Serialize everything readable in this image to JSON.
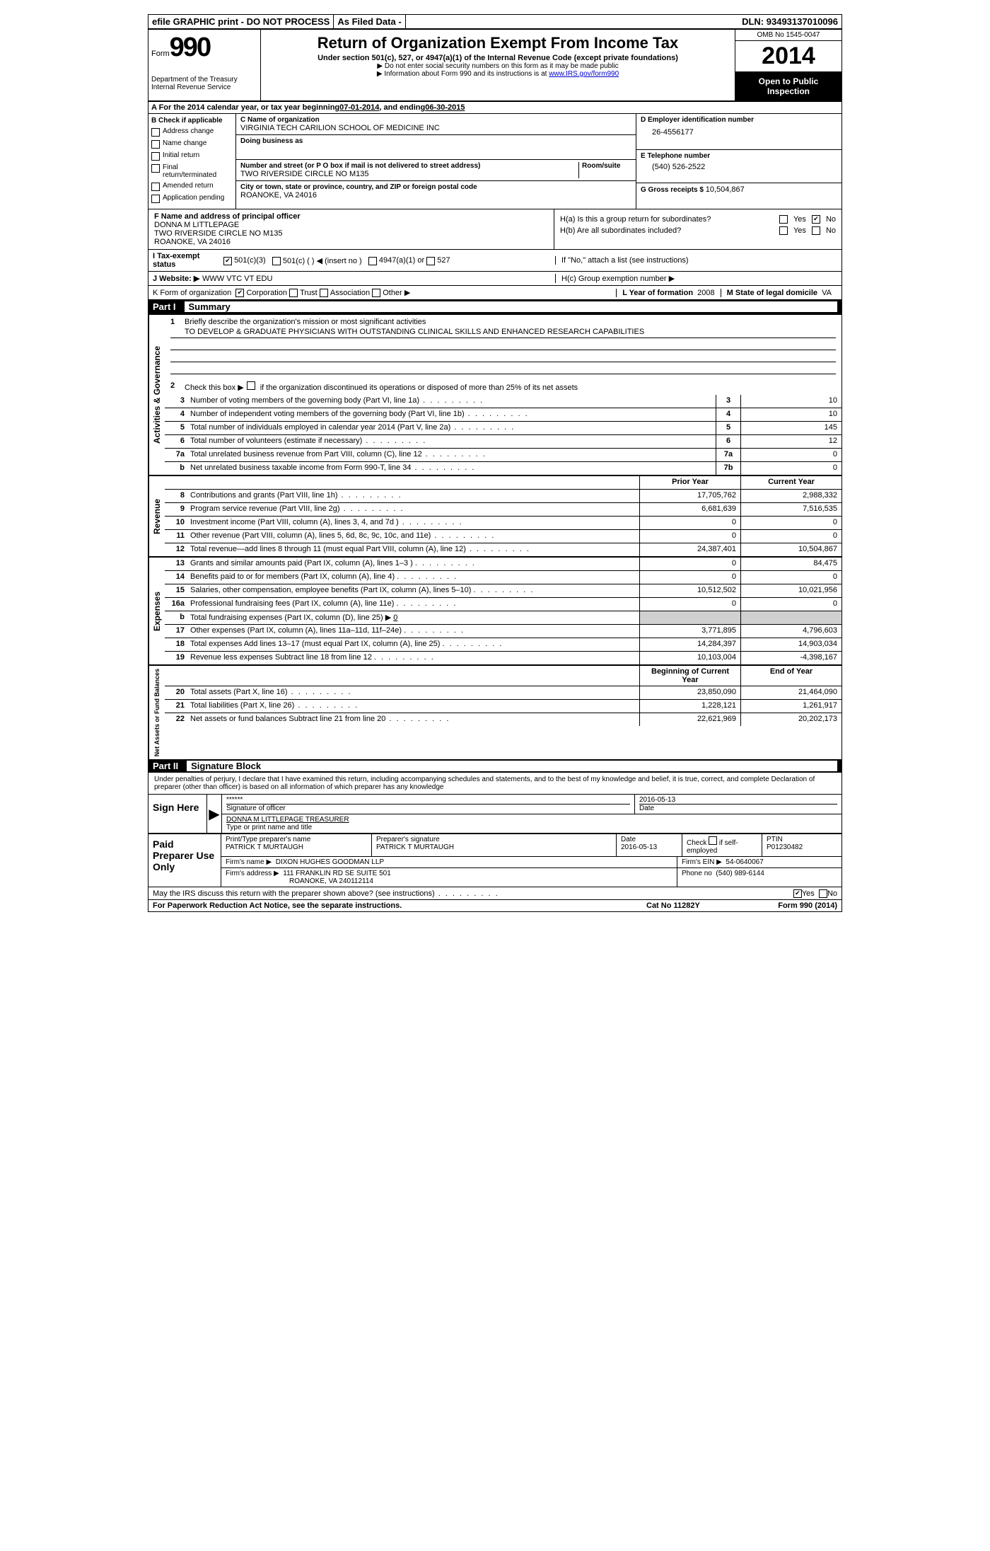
{
  "top_bar": {
    "efile": "efile GRAPHIC print - DO NOT PROCESS",
    "as_filed": "As Filed Data -",
    "dln_label": "DLN:",
    "dln": "93493137010096"
  },
  "header": {
    "form_label": "Form",
    "form_number": "990",
    "dept": "Department of the Treasury",
    "irs": "Internal Revenue Service",
    "title": "Return of Organization Exempt From Income Tax",
    "subtitle": "Under section 501(c), 527, or 4947(a)(1) of the Internal Revenue Code (except private foundations)",
    "note1": "▶ Do not enter social security numbers on this form as it may be made public",
    "note2_pre": "▶ Information about Form 990 and its instructions is at ",
    "note2_link": "www.IRS.gov/form990",
    "omb": "OMB No 1545-0047",
    "year": "2014",
    "inspection": "Open to Public Inspection"
  },
  "row_a": {
    "prefix": "A  For the 2014 calendar year, or tax year beginning ",
    "begin": "07-01-2014",
    "mid": " , and ending ",
    "end": "06-30-2015"
  },
  "section_b": {
    "label": "B  Check if applicable",
    "items": [
      "Address change",
      "Name change",
      "Initial return",
      "Final return/terminated",
      "Amended return",
      "Application pending"
    ]
  },
  "section_c": {
    "name_label": "C Name of organization",
    "name": "VIRGINIA TECH CARILION SCHOOL OF MEDICINE INC",
    "dba_label": "Doing business as",
    "dba": "",
    "addr_label": "Number and street (or P O  box if mail is not delivered to street address)",
    "room_label": "Room/suite",
    "addr": "TWO RIVERSIDE CIRCLE NO M135",
    "city_label": "City or town, state or province, country, and ZIP or foreign postal code",
    "city": "ROANOKE, VA  24016"
  },
  "section_d": {
    "ein_label": "D Employer identification number",
    "ein": "26-4556177",
    "tel_label": "E Telephone number",
    "tel": "(540) 526-2522",
    "gross_label": "G Gross receipts $",
    "gross": "10,504,867"
  },
  "section_f": {
    "label": "F  Name and address of principal officer",
    "name": "DONNA M LITTLEPAGE",
    "addr1": "TWO RIVERSIDE CIRCLE NO M135",
    "addr2": "ROANOKE, VA   24016"
  },
  "section_h": {
    "ha": "H(a)  Is this a group return for subordinates?",
    "hb": "H(b)  Are all subordinates included?",
    "hb_note": "If \"No,\" attach a list  (see instructions)",
    "hc": "H(c)  Group exemption number ▶",
    "yes": "Yes",
    "no": "No",
    "ha_yes": false,
    "ha_no": true
  },
  "line_i": {
    "label": "I   Tax-exempt status",
    "opt1": "501(c)(3)",
    "opt2": "501(c) (   ) ◀ (insert no )",
    "opt3": "4947(a)(1) or",
    "opt4": "527"
  },
  "line_j": {
    "label": "J   Website: ▶",
    "value": "WWW VTC VT EDU"
  },
  "line_k": {
    "label": "K Form of organization",
    "opts": [
      "Corporation",
      "Trust",
      "Association",
      "Other ▶"
    ],
    "l_label": "L Year of formation",
    "l_val": "2008",
    "m_label": "M State of legal domicile",
    "m_val": "VA"
  },
  "part1": {
    "num": "Part I",
    "title": "Summary",
    "q1_label": "1",
    "q1_text": "Briefly describe the organization's mission or most significant activities",
    "q1_mission": "TO DEVELOP & GRADUATE PHYSICIANS WITH OUTSTANDING CLINICAL SKILLS AND ENHANCED RESEARCH CAPABILITIES",
    "q2_label": "2",
    "q2_text": "Check this box ▶     if the organization discontinued its operations or disposed of more than 25% of its net assets",
    "lines_single": [
      {
        "n": "3",
        "desc": "Number of voting members of the governing body (Part VI, line 1a)",
        "box": "3",
        "val": "10"
      },
      {
        "n": "4",
        "desc": "Number of independent voting members of the governing body (Part VI, line 1b)",
        "box": "4",
        "val": "10"
      },
      {
        "n": "5",
        "desc": "Total number of individuals employed in calendar year 2014 (Part V, line 2a)",
        "box": "5",
        "val": "145"
      },
      {
        "n": "6",
        "desc": "Total number of volunteers (estimate if necessary)",
        "box": "6",
        "val": "12"
      },
      {
        "n": "7a",
        "desc": "Total unrelated business revenue from Part VIII, column (C), line 12",
        "box": "7a",
        "val": "0"
      },
      {
        "n": "b",
        "desc": "Net unrelated business taxable income from Form 990-T, line 34",
        "box": "7b",
        "val": "0"
      }
    ],
    "col_headers": {
      "prior": "Prior Year",
      "current": "Current Year"
    },
    "revenue": [
      {
        "n": "8",
        "desc": "Contributions and grants (Part VIII, line 1h)",
        "prior": "17,705,762",
        "current": "2,988,332"
      },
      {
        "n": "9",
        "desc": "Program service revenue (Part VIII, line 2g)",
        "prior": "6,681,639",
        "current": "7,516,535"
      },
      {
        "n": "10",
        "desc": "Investment income (Part VIII, column (A), lines 3, 4, and 7d )",
        "prior": "0",
        "current": "0"
      },
      {
        "n": "11",
        "desc": "Other revenue (Part VIII, column (A), lines 5, 6d, 8c, 9c, 10c, and 11e)",
        "prior": "0",
        "current": "0"
      },
      {
        "n": "12",
        "desc": "Total revenue—add lines 8 through 11 (must equal Part VIII, column (A), line 12)",
        "prior": "24,387,401",
        "current": "10,504,867"
      }
    ],
    "expenses": [
      {
        "n": "13",
        "desc": "Grants and similar amounts paid (Part IX, column (A), lines 1–3 )",
        "prior": "0",
        "current": "84,475"
      },
      {
        "n": "14",
        "desc": "Benefits paid to or for members (Part IX, column (A), line 4)",
        "prior": "0",
        "current": "0"
      },
      {
        "n": "15",
        "desc": "Salaries, other compensation, employee benefits (Part IX, column (A), lines 5–10)",
        "prior": "10,512,502",
        "current": "10,021,956"
      },
      {
        "n": "16a",
        "desc": "Professional fundraising fees (Part IX, column (A), line 11e)",
        "prior": "0",
        "current": "0"
      },
      {
        "n": "b",
        "desc": "Total fundraising expenses (Part IX, column (D), line 25) ▶",
        "prior": "",
        "current": "",
        "shade": true,
        "inline_val": "0"
      },
      {
        "n": "17",
        "desc": "Other expenses (Part IX, column (A), lines 11a–11d, 11f–24e)",
        "prior": "3,771,895",
        "current": "4,796,603"
      },
      {
        "n": "18",
        "desc": "Total expenses  Add lines 13–17 (must equal Part IX, column (A), line 25)",
        "prior": "14,284,397",
        "current": "14,903,034"
      },
      {
        "n": "19",
        "desc": "Revenue less expenses  Subtract line 18 from line 12",
        "prior": "10,103,004",
        "current": "-4,398,167"
      }
    ],
    "net_headers": {
      "begin": "Beginning of Current Year",
      "end": "End of Year"
    },
    "net_assets": [
      {
        "n": "20",
        "desc": "Total assets (Part X, line 16)",
        "prior": "23,850,090",
        "current": "21,464,090"
      },
      {
        "n": "21",
        "desc": "Total liabilities (Part X, line 26)",
        "prior": "1,228,121",
        "current": "1,261,917"
      },
      {
        "n": "22",
        "desc": "Net assets or fund balances  Subtract line 21 from line 20",
        "prior": "22,621,969",
        "current": "20,202,173"
      }
    ],
    "vert_labels": {
      "gov": "Activities & Governance",
      "rev": "Revenue",
      "exp": "Expenses",
      "net": "Net Assets or Fund Balances"
    }
  },
  "part2": {
    "num": "Part II",
    "title": "Signature Block",
    "perjury": "Under penalties of perjury, I declare that I have examined this return, including accompanying schedules and statements, and to the best of my knowledge and belief, it is true, correct, and complete  Declaration of preparer (other than officer) is based on all information of which preparer has any knowledge",
    "sign_here": "Sign Here",
    "sig_stars": "******",
    "sig_of_officer": "Signature of officer",
    "sig_date": "2016-05-13",
    "date_label": "Date",
    "officer_name": "DONNA M LITTLEPAGE TREASURER",
    "type_print": "Type or print name and title",
    "paid_prep": "Paid Preparer Use Only",
    "prep_name_label": "Print/Type preparer's name",
    "prep_name": "PATRICK T MURTAUGH",
    "prep_sig_label": "Preparer's signature",
    "prep_sig": "PATRICK T MURTAUGH",
    "prep_date": "2016-05-13",
    "check_if": "Check     if self-employed",
    "ptin_label": "PTIN",
    "ptin": "P01230482",
    "firm_name_label": "Firm's name    ▶",
    "firm_name": "DIXON HUGHES GOODMAN LLP",
    "firm_ein_label": "Firm's EIN ▶",
    "firm_ein": "54-0640067",
    "firm_addr_label": "Firm's address ▶",
    "firm_addr1": "111 FRANKLIN RD SE SUITE 501",
    "firm_addr2": "ROANOKE, VA  240112114",
    "firm_phone_label": "Phone no",
    "firm_phone": "(540) 989-6144",
    "discuss": "May the IRS discuss this return with the preparer shown above? (see instructions)",
    "yes": "Yes",
    "no": "No"
  },
  "footer": {
    "paperwork": "For Paperwork Reduction Act Notice, see the separate instructions.",
    "cat": "Cat No 11282Y",
    "form": "Form 990 (2014)"
  }
}
